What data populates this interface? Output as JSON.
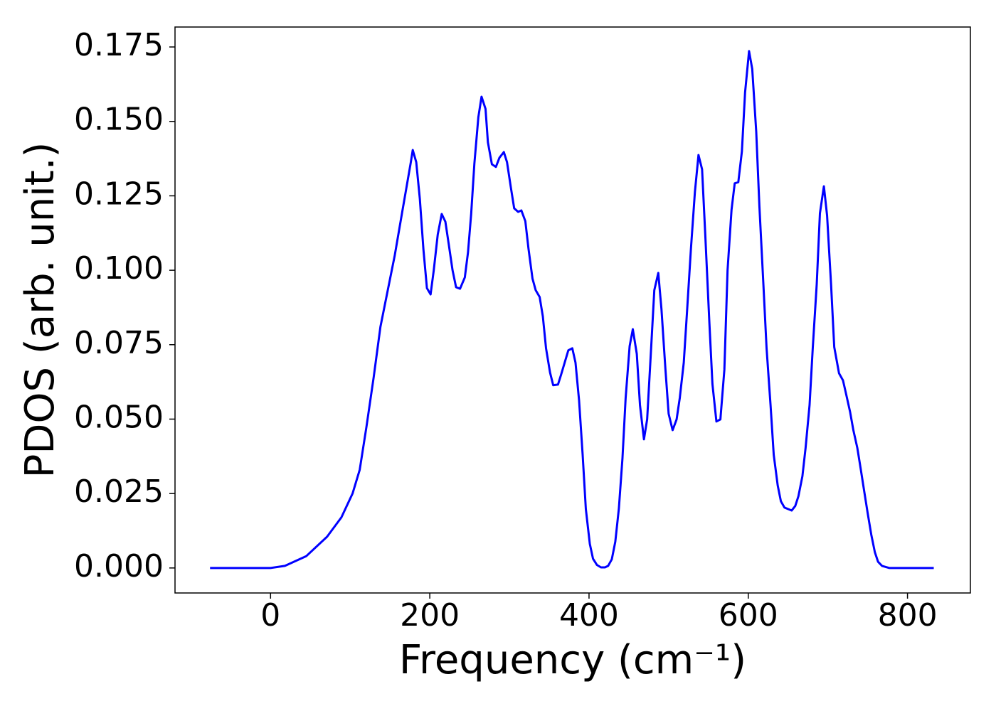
{
  "chart_data": {
    "type": "line",
    "xlabel": "Frequency (cm⁻¹)",
    "ylabel": "PDOS (arb. unit.)",
    "color": "#0000ff",
    "grid": false,
    "xlim": [
      -120,
      879
    ],
    "ylim": [
      -0.0084,
      0.1817
    ],
    "xticks": [
      0,
      200,
      400,
      600,
      800
    ],
    "yticks": [
      {
        "value": 0,
        "label": "0.000"
      },
      {
        "value": 0.025,
        "label": "0.025"
      },
      {
        "value": 0.05,
        "label": "0.050"
      },
      {
        "value": 0.075,
        "label": "0.075"
      },
      {
        "value": 0.1,
        "label": "0.100"
      },
      {
        "value": 0.125,
        "label": "0.125"
      },
      {
        "value": 0.15,
        "label": "0.150"
      },
      {
        "value": 0.175,
        "label": "0.175"
      }
    ],
    "x": [
      -76,
      0,
      18,
      45,
      71,
      89,
      103,
      112,
      120.5,
      129.5,
      138,
      147,
      156,
      165,
      170.5,
      176,
      178.6,
      183,
      187.5,
      192,
      196.4,
      201,
      205,
      210,
      215,
      219.6,
      224,
      228.6,
      233,
      238,
      244,
      248,
      252,
      256,
      261,
      265,
      270,
      273,
      278,
      283,
      287.5,
      293,
      297,
      302,
      306,
      311,
      315,
      320,
      324,
      329,
      333,
      338,
      342,
      346,
      351,
      355,
      361,
      365,
      370,
      374,
      379,
      383,
      387.5,
      392,
      396,
      401,
      405,
      410,
      415,
      420,
      424,
      428.6,
      433,
      437.5,
      442,
      446,
      451,
      455,
      460,
      464,
      469,
      473,
      478,
      482,
      487,
      491,
      496,
      500,
      505,
      510,
      514,
      519,
      523,
      528,
      533,
      537.5,
      542,
      546,
      551,
      555,
      560,
      565,
      570,
      574,
      579,
      583,
      587.5,
      592,
      596,
      601,
      605,
      610,
      614,
      619,
      623,
      628,
      632,
      637,
      641,
      645.5,
      654.5,
      659,
      663,
      668,
      672,
      677,
      681,
      686,
      690,
      695,
      699,
      704,
      708,
      714,
      719,
      723,
      728,
      732,
      737,
      741,
      745.5,
      750,
      754.5,
      759,
      763,
      768,
      777,
      833
    ],
    "values": [
      0,
      0,
      0.0007,
      0.004,
      0.0105,
      0.017,
      0.025,
      0.033,
      0.0475,
      0.064,
      0.081,
      0.093,
      0.105,
      0.119,
      0.1275,
      0.136,
      0.1404,
      0.1363,
      0.124,
      0.107,
      0.094,
      0.0919,
      0.1,
      0.112,
      0.1189,
      0.1163,
      0.1084,
      0.1,
      0.0943,
      0.0938,
      0.0976,
      0.106,
      0.119,
      0.1358,
      0.1514,
      0.1583,
      0.1542,
      0.143,
      0.1356,
      0.1347,
      0.1378,
      0.1397,
      0.1363,
      0.1275,
      0.1208,
      0.1196,
      0.1201,
      0.1165,
      0.1072,
      0.0972,
      0.0933,
      0.091,
      0.0845,
      0.0738,
      0.0657,
      0.0614,
      0.0616,
      0.065,
      0.0695,
      0.0731,
      0.0738,
      0.069,
      0.0563,
      0.038,
      0.0198,
      0.0081,
      0.0031,
      0.001,
      0.0002,
      0.0002,
      0.0007,
      0.0029,
      0.0088,
      0.02,
      0.0368,
      0.0571,
      0.0745,
      0.0802,
      0.0719,
      0.0547,
      0.0432,
      0.0499,
      0.0738,
      0.0933,
      0.0991,
      0.0869,
      0.0666,
      0.0518,
      0.0463,
      0.0499,
      0.0571,
      0.069,
      0.0857,
      0.1072,
      0.1263,
      0.1387,
      0.1339,
      0.112,
      0.0833,
      0.0618,
      0.0492,
      0.0499,
      0.0666,
      0.1,
      0.1203,
      0.1292,
      0.1296,
      0.1399,
      0.1597,
      0.1736,
      0.1676,
      0.1466,
      0.1215,
      0.0953,
      0.0738,
      0.0547,
      0.038,
      0.0277,
      0.0224,
      0.0203,
      0.0193,
      0.0208,
      0.0241,
      0.0308,
      0.0403,
      0.0547,
      0.0738,
      0.0953,
      0.1191,
      0.1282,
      0.1184,
      0.0953,
      0.0742,
      0.0654,
      0.063,
      0.0583,
      0.0523,
      0.0463,
      0.0403,
      0.0337,
      0.026,
      0.0184,
      0.0112,
      0.0053,
      0.0021,
      0.0007,
      0,
      0
    ]
  }
}
